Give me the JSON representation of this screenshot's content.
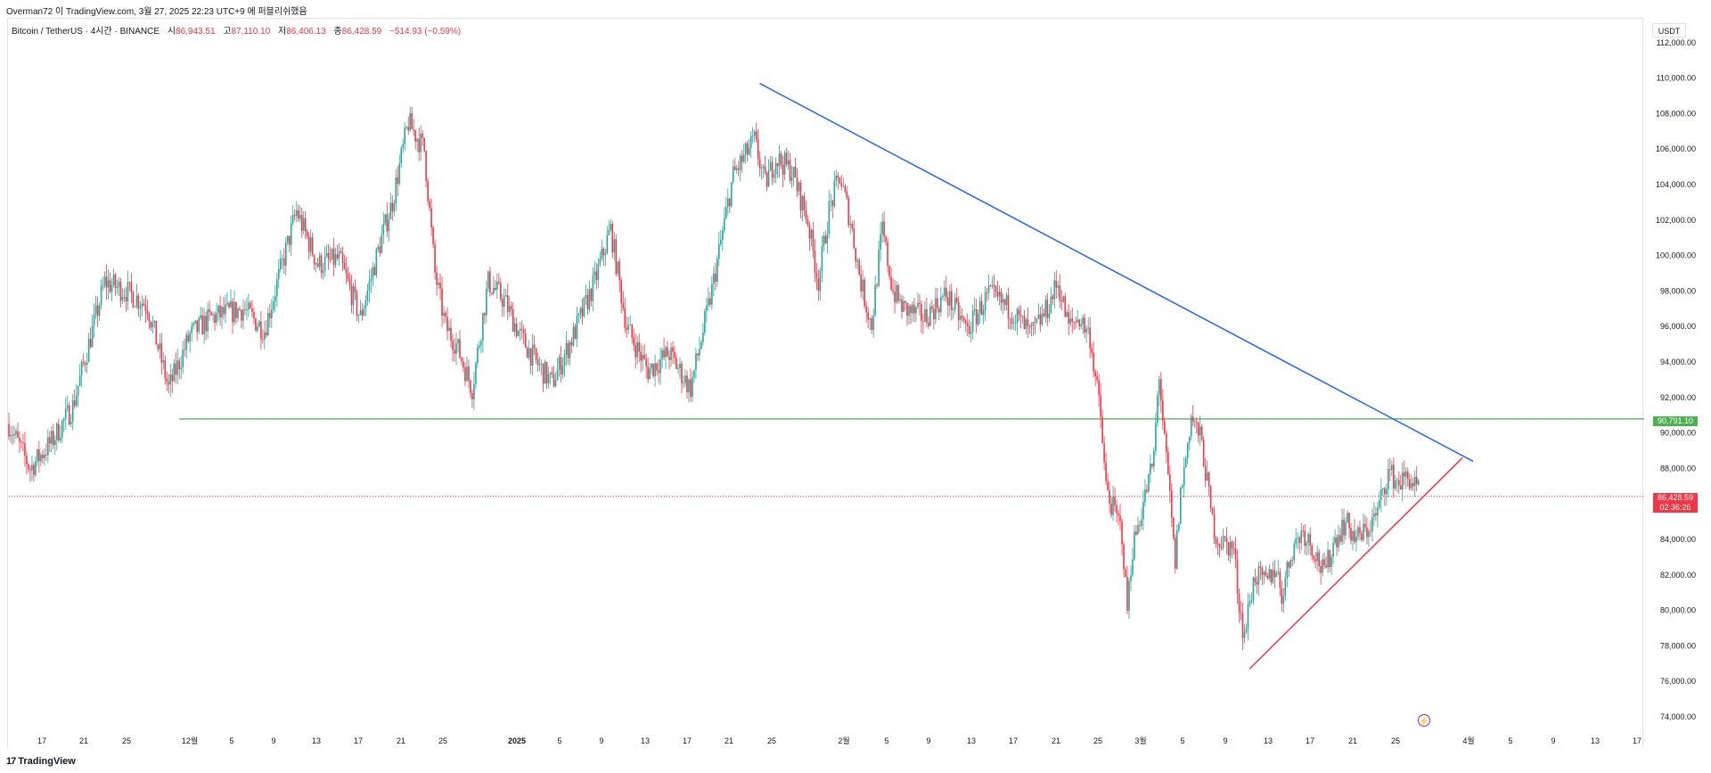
{
  "header": {
    "author_line": "Overman72 이 TradingView.com, 3월 27, 2025 22:23 UTC+9 에 퍼블리쉬했음"
  },
  "legend": {
    "symbol": "Bitcoin / TetherUS · 4시간 · BINANCE",
    "open_label": "시",
    "open_value": "86,943.51",
    "high_label": "고",
    "high_value": "87,110.10",
    "low_label": "저",
    "low_value": "86,406.13",
    "close_label": "종",
    "close_value": "86,428.59",
    "change": "−514.93 (−0.59%)"
  },
  "axis": {
    "currency": "USDT"
  },
  "price_tags": {
    "support_level": "90,791.10",
    "last_price": "86,428.59",
    "countdown": "02:36:26"
  },
  "footer": {
    "brand": "TradingView"
  },
  "icons": {
    "brand_logo": "tradingview-logo-icon",
    "alert": "lightning-bolt-icon"
  },
  "colors": {
    "up": "#26a69a",
    "down": "#f23645",
    "resistance_trendline": "#2962ff",
    "support_trendline": "#f23645",
    "horizontal_level": "#4caf50",
    "last_price_line": "#f23645"
  },
  "chart_data": {
    "type": "candlestick",
    "symbol": "BTCUSDT",
    "exchange": "BINANCE",
    "interval": "4시간",
    "ylim": [
      73000,
      113000
    ],
    "y_ticks": [
      "74,000.00",
      "76,000.00",
      "78,000.00",
      "80,000.00",
      "82,000.00",
      "84,000.00",
      "86,000.00",
      "88,000.00",
      "90,000.00",
      "92,000.00",
      "94,000.00",
      "96,000.00",
      "98,000.00",
      "100,000.00",
      "102,000.00",
      "104,000.00",
      "106,000.00",
      "108,000.00",
      "110,000.00",
      "112,000.00"
    ],
    "x_ticks": [
      "17",
      "21",
      "25",
      "12월",
      "5",
      "9",
      "13",
      "17",
      "21",
      "25",
      "2025",
      "5",
      "9",
      "13",
      "17",
      "21",
      "25",
      "2월",
      "5",
      "9",
      "13",
      "17",
      "21",
      "25",
      "3월",
      "5",
      "9",
      "13",
      "17",
      "21",
      "25",
      "4월",
      "5",
      "9",
      "13",
      "17"
    ],
    "grid": false,
    "price_path": [
      {
        "t": 0,
        "p": 90500
      },
      {
        "t": 2,
        "p": 88000
      },
      {
        "t": 4,
        "p": 89500
      },
      {
        "t": 6,
        "p": 91500
      },
      {
        "t": 9,
        "p": 98500
      },
      {
        "t": 11,
        "p": 98000
      },
      {
        "t": 13,
        "p": 97200
      },
      {
        "t": 15,
        "p": 92500
      },
      {
        "t": 17,
        "p": 95500
      },
      {
        "t": 19,
        "p": 96500
      },
      {
        "t": 22,
        "p": 97000
      },
      {
        "t": 24,
        "p": 95800
      },
      {
        "t": 27,
        "p": 102500
      },
      {
        "t": 29,
        "p": 99500
      },
      {
        "t": 31,
        "p": 99800
      },
      {
        "t": 33,
        "p": 96500
      },
      {
        "t": 35,
        "p": 101000
      },
      {
        "t": 36,
        "p": 103000
      },
      {
        "t": 37.5,
        "p": 107500
      },
      {
        "t": 39,
        "p": 106000
      },
      {
        "t": 40,
        "p": 99000
      },
      {
        "t": 41,
        "p": 96000
      },
      {
        "t": 42,
        "p": 95000
      },
      {
        "t": 43.5,
        "p": 92500
      },
      {
        "t": 45,
        "p": 98500
      },
      {
        "t": 46.5,
        "p": 97500
      },
      {
        "t": 48,
        "p": 95500
      },
      {
        "t": 49.5,
        "p": 94000
      },
      {
        "t": 51,
        "p": 92800
      },
      {
        "t": 53,
        "p": 95500
      },
      {
        "t": 55,
        "p": 98500
      },
      {
        "t": 56.5,
        "p": 101500
      },
      {
        "t": 58,
        "p": 96000
      },
      {
        "t": 60,
        "p": 93500
      },
      {
        "t": 62,
        "p": 94500
      },
      {
        "t": 64,
        "p": 92500
      },
      {
        "t": 66,
        "p": 98000
      },
      {
        "t": 68,
        "p": 104500
      },
      {
        "t": 70,
        "p": 106500
      },
      {
        "t": 71,
        "p": 104000
      },
      {
        "t": 72,
        "p": 105500
      },
      {
        "t": 73.5,
        "p": 104800
      },
      {
        "t": 75,
        "p": 102000
      },
      {
        "t": 76,
        "p": 98500
      },
      {
        "t": 77,
        "p": 102500
      },
      {
        "t": 78,
        "p": 104500
      },
      {
        "t": 79,
        "p": 102000
      },
      {
        "t": 80,
        "p": 98500
      },
      {
        "t": 81,
        "p": 96000
      },
      {
        "t": 82,
        "p": 101500
      },
      {
        "t": 83,
        "p": 98000
      },
      {
        "t": 84,
        "p": 97000
      },
      {
        "t": 86,
        "p": 96500
      },
      {
        "t": 88,
        "p": 97800
      },
      {
        "t": 90,
        "p": 95800
      },
      {
        "t": 92,
        "p": 97800
      },
      {
        "t": 94,
        "p": 97000
      },
      {
        "t": 96,
        "p": 95500
      },
      {
        "t": 97.5,
        "p": 97000
      },
      {
        "t": 98.5,
        "p": 98500
      },
      {
        "t": 99.5,
        "p": 96000
      },
      {
        "t": 100.5,
        "p": 96500
      },
      {
        "t": 101.5,
        "p": 95500
      },
      {
        "t": 102.5,
        "p": 91000
      },
      {
        "t": 103,
        "p": 87000
      },
      {
        "t": 103.5,
        "p": 86000
      },
      {
        "t": 104.5,
        "p": 84500
      },
      {
        "t": 105,
        "p": 80000
      },
      {
        "t": 105.5,
        "p": 83500
      },
      {
        "t": 106.5,
        "p": 86000
      },
      {
        "t": 107.5,
        "p": 88500
      },
      {
        "t": 108,
        "p": 93500
      },
      {
        "t": 108.5,
        "p": 89500
      },
      {
        "t": 109,
        "p": 86500
      },
      {
        "t": 109.5,
        "p": 82500
      },
      {
        "t": 110,
        "p": 86500
      },
      {
        "t": 110.5,
        "p": 88500
      },
      {
        "t": 111,
        "p": 91000
      },
      {
        "t": 112,
        "p": 89500
      },
      {
        "t": 113,
        "p": 85000
      },
      {
        "t": 113.5,
        "p": 84000
      },
      {
        "t": 115,
        "p": 83500
      },
      {
        "t": 115.5,
        "p": 80500
      },
      {
        "t": 116,
        "p": 78500
      },
      {
        "t": 116.5,
        "p": 80500
      },
      {
        "t": 117,
        "p": 82000
      },
      {
        "t": 118,
        "p": 81500
      },
      {
        "t": 119,
        "p": 82500
      },
      {
        "t": 119.5,
        "p": 80800
      },
      {
        "t": 120.5,
        "p": 83500
      },
      {
        "t": 121.5,
        "p": 84500
      },
      {
        "t": 122.5,
        "p": 83500
      },
      {
        "t": 123.5,
        "p": 82000
      },
      {
        "t": 124.5,
        "p": 84000
      },
      {
        "t": 125.5,
        "p": 85000
      },
      {
        "t": 126.5,
        "p": 84000
      },
      {
        "t": 127.5,
        "p": 84500
      },
      {
        "t": 128.5,
        "p": 85500
      },
      {
        "t": 129.5,
        "p": 87800
      },
      {
        "t": 130.5,
        "p": 87200
      },
      {
        "t": 131.5,
        "p": 87500
      },
      {
        "t": 132.5,
        "p": 86500
      }
    ],
    "trend_lines": [
      {
        "name": "downtrend",
        "color": "#2962ff",
        "from": {
          "t": 70.5,
          "p": 109700
        },
        "to": {
          "t": 137.5,
          "p": 88400
        }
      },
      {
        "name": "uptrend",
        "color": "#f23645",
        "from": {
          "t": 116.5,
          "p": 76700
        },
        "to": {
          "t": 136.5,
          "p": 88600
        }
      }
    ],
    "horizontal_levels": [
      {
        "price": 90791.1,
        "color": "#4caf50",
        "style": "solid",
        "from_t": 16
      },
      {
        "price": 86428.59,
        "color": "#f23645",
        "style": "dotted",
        "from_t": 0
      }
    ],
    "last_price": 86428.59,
    "countdown": "02:36:26"
  }
}
